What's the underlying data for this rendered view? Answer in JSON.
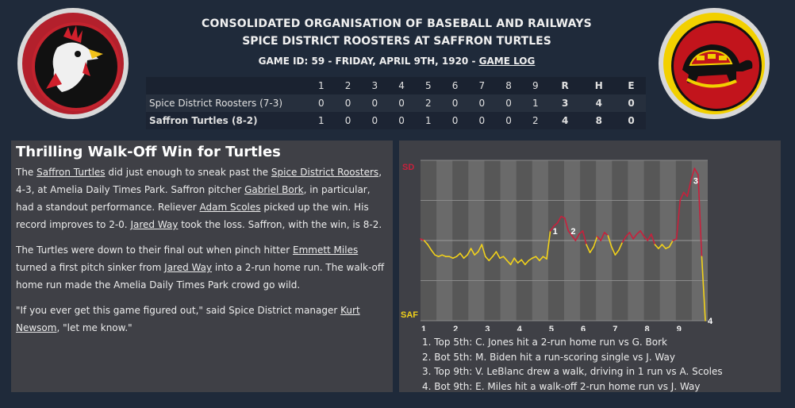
{
  "header": {
    "league": "CONSOLIDATED ORGANISATION OF BASEBALL AND RAILWAYS",
    "matchup": "SPICE DISTRICT ROOSTERS AT SAFFRON TURTLES",
    "game_info": "GAME ID: 59 - FRIDAY, APRIL 9TH, 1920 - ",
    "game_log_link": "GAME LOG"
  },
  "logos": {
    "away": "rooster-logo",
    "home": "turtle-logo"
  },
  "linescore": {
    "columns": [
      "1",
      "2",
      "3",
      "4",
      "5",
      "6",
      "7",
      "8",
      "9",
      "R",
      "H",
      "E"
    ],
    "rows": [
      {
        "team": "Spice District Roosters (7-3)",
        "innings": [
          "0",
          "0",
          "0",
          "0",
          "2",
          "0",
          "0",
          "0",
          "1"
        ],
        "r": "3",
        "h": "4",
        "e": "0"
      },
      {
        "team": "Saffron Turtles (8-2)",
        "innings": [
          "1",
          "0",
          "0",
          "0",
          "1",
          "0",
          "0",
          "0",
          "2"
        ],
        "r": "4",
        "h": "8",
        "e": "0"
      }
    ]
  },
  "story": {
    "headline": "Thrilling Walk-Off Win for Turtles",
    "p1": {
      "s1": "The ",
      "l1": "Saffron Turtles",
      "s2": " did just enough to sneak past the ",
      "l2": "Spice District Roosters",
      "s3": ", 4-3, at Amelia Daily Times Park. Saffron pitcher ",
      "l3": "Gabriel Bork",
      "s4": ", in particular, had a standout performance. Reliever ",
      "l4": "Adam Scoles",
      "s5": " picked up the win. His record improves to 2-0. ",
      "l5": "Jared Way",
      "s6": " took the loss. Saffron, with the win, is 8-2."
    },
    "p2": {
      "s1": "The Turtles were down to their final out when pinch hitter ",
      "l1": "Emmett Miles",
      "s2": " turned a first pitch sinker from ",
      "l2": "Jared Way",
      "s3": " into a 2-run home run. The walk-off home run made the Amelia Daily Times Park crowd go wild."
    },
    "p3": {
      "s1": "\"If you ever get this game figured out,\" said Spice District manager ",
      "l1": "Kurt Newsom",
      "s2": ", \"let me know.\""
    }
  },
  "chart_data": {
    "type": "line",
    "title": "",
    "top_label": "SD",
    "bottom_label": "SAF",
    "y_range": [
      -1,
      1
    ],
    "inning_labels": [
      "1",
      "2",
      "3",
      "4",
      "5",
      "6",
      "7",
      "8",
      "9"
    ],
    "colors": {
      "away": "#c8203c",
      "home": "#f2d21a"
    },
    "series": [
      {
        "values": [
          0.02,
          0.0,
          -0.05,
          -0.12,
          -0.18,
          -0.2,
          -0.18,
          -0.2,
          -0.2,
          -0.22,
          -0.2,
          -0.16,
          -0.22,
          -0.18,
          -0.1,
          -0.18,
          -0.14,
          -0.05,
          -0.2,
          -0.25,
          -0.2,
          -0.14,
          -0.22,
          -0.2,
          -0.25,
          -0.3,
          -0.22,
          -0.28,
          -0.24,
          -0.3,
          -0.25,
          -0.22,
          -0.2,
          -0.25,
          -0.2,
          -0.23,
          0.12,
          0.18,
          0.22,
          0.3,
          0.28,
          0.12,
          0.06,
          0.0,
          0.08,
          0.12,
          -0.05,
          -0.15,
          -0.08,
          0.05,
          0.0,
          0.1,
          0.06,
          -0.08,
          -0.18,
          -0.12,
          -0.02,
          0.05,
          0.1,
          0.02,
          0.08,
          0.12,
          0.05,
          0.0,
          0.08,
          -0.05,
          -0.1,
          -0.05,
          -0.1,
          -0.08,
          0.0,
          0.02,
          0.5,
          0.6,
          0.55,
          0.75,
          0.9,
          0.82,
          -0.2,
          -1.0
        ],
        "events": [
          {
            "n": "1",
            "index": 36
          },
          {
            "n": "2",
            "index": 41
          },
          {
            "n": "3",
            "index": 75
          },
          {
            "n": "4",
            "index": 79
          }
        ]
      }
    ],
    "notes": [
      "1. Top 5th: C. Jones hit a 2-run home run vs G. Bork",
      "2. Bot 5th: M. Biden hit a run-scoring single vs J. Way",
      "3. Top 9th: V. LeBlanc drew a walk, driving in 1 run vs A. Scoles",
      "4. Bot 9th: E. Miles hit a walk-off 2-run home run vs J. Way"
    ]
  }
}
